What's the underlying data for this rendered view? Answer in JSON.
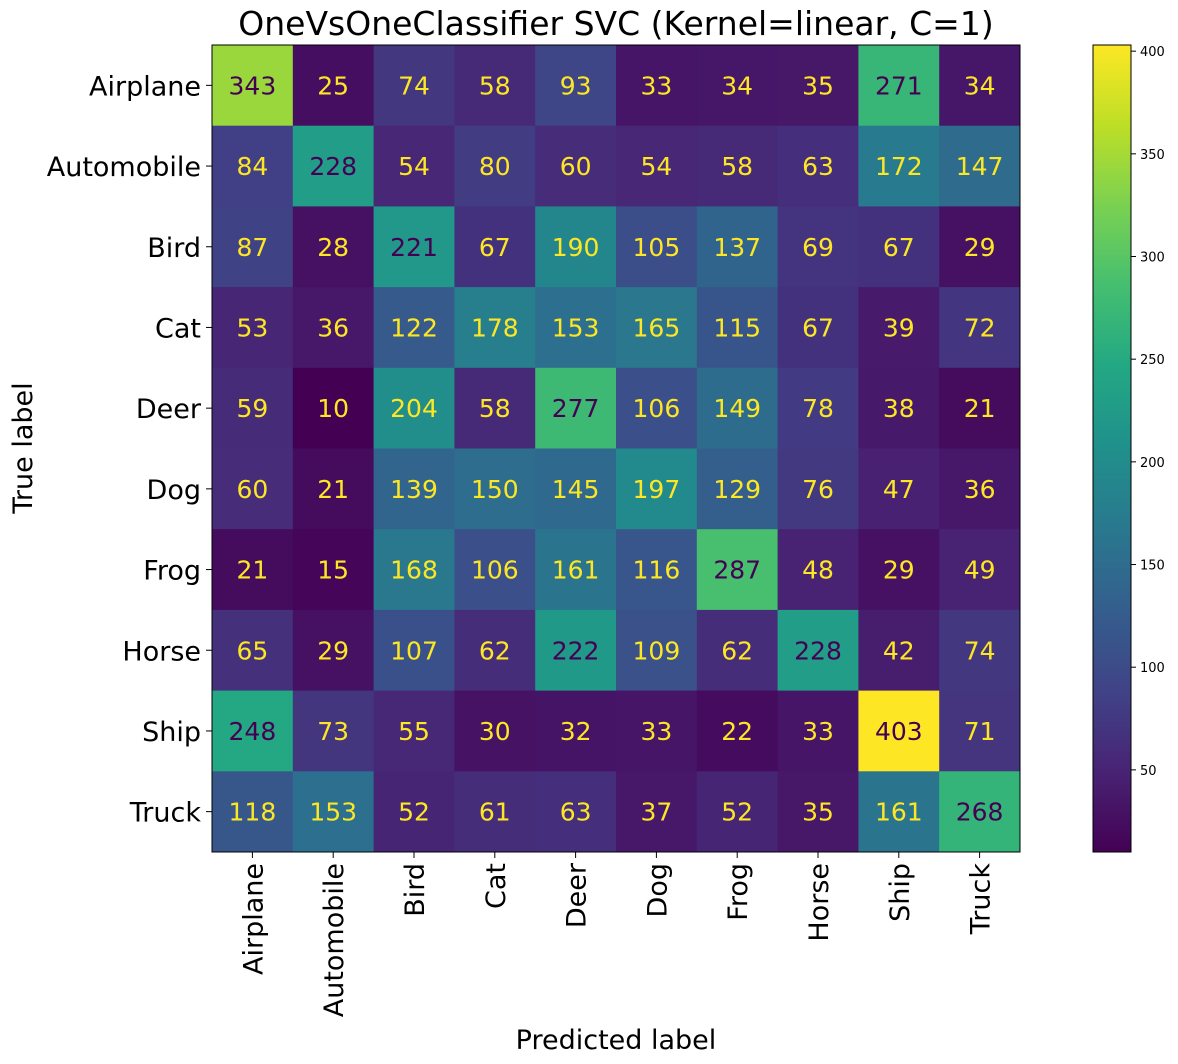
{
  "chart_data": {
    "type": "heatmap",
    "title": "OneVsOneClassifier SVC (Kernel=linear, C=1)",
    "xlabel": "Predicted label",
    "ylabel": "True label",
    "categories": [
      "Airplane",
      "Automobile",
      "Bird",
      "Cat",
      "Deer",
      "Dog",
      "Frog",
      "Horse",
      "Ship",
      "Truck"
    ],
    "matrix": [
      [
        343,
        25,
        74,
        58,
        93,
        33,
        34,
        35,
        271,
        34
      ],
      [
        84,
        228,
        54,
        80,
        60,
        54,
        58,
        63,
        172,
        147
      ],
      [
        87,
        28,
        221,
        67,
        190,
        105,
        137,
        69,
        67,
        29
      ],
      [
        53,
        36,
        122,
        178,
        153,
        165,
        115,
        67,
        39,
        72
      ],
      [
        59,
        10,
        204,
        58,
        277,
        106,
        149,
        78,
        38,
        21
      ],
      [
        60,
        21,
        139,
        150,
        145,
        197,
        129,
        76,
        47,
        36
      ],
      [
        21,
        15,
        168,
        106,
        161,
        116,
        287,
        48,
        29,
        49
      ],
      [
        65,
        29,
        107,
        62,
        222,
        109,
        62,
        228,
        42,
        74
      ],
      [
        248,
        73,
        55,
        30,
        32,
        33,
        22,
        33,
        403,
        71
      ],
      [
        118,
        153,
        52,
        61,
        63,
        37,
        52,
        35,
        161,
        268
      ]
    ],
    "colormap": "viridis",
    "value_range": [
      10,
      403
    ],
    "colorbar_ticks": [
      50,
      100,
      150,
      200,
      250,
      300,
      350,
      400
    ],
    "text_color_light": "#fde725",
    "text_color_dark": "#440154"
  }
}
